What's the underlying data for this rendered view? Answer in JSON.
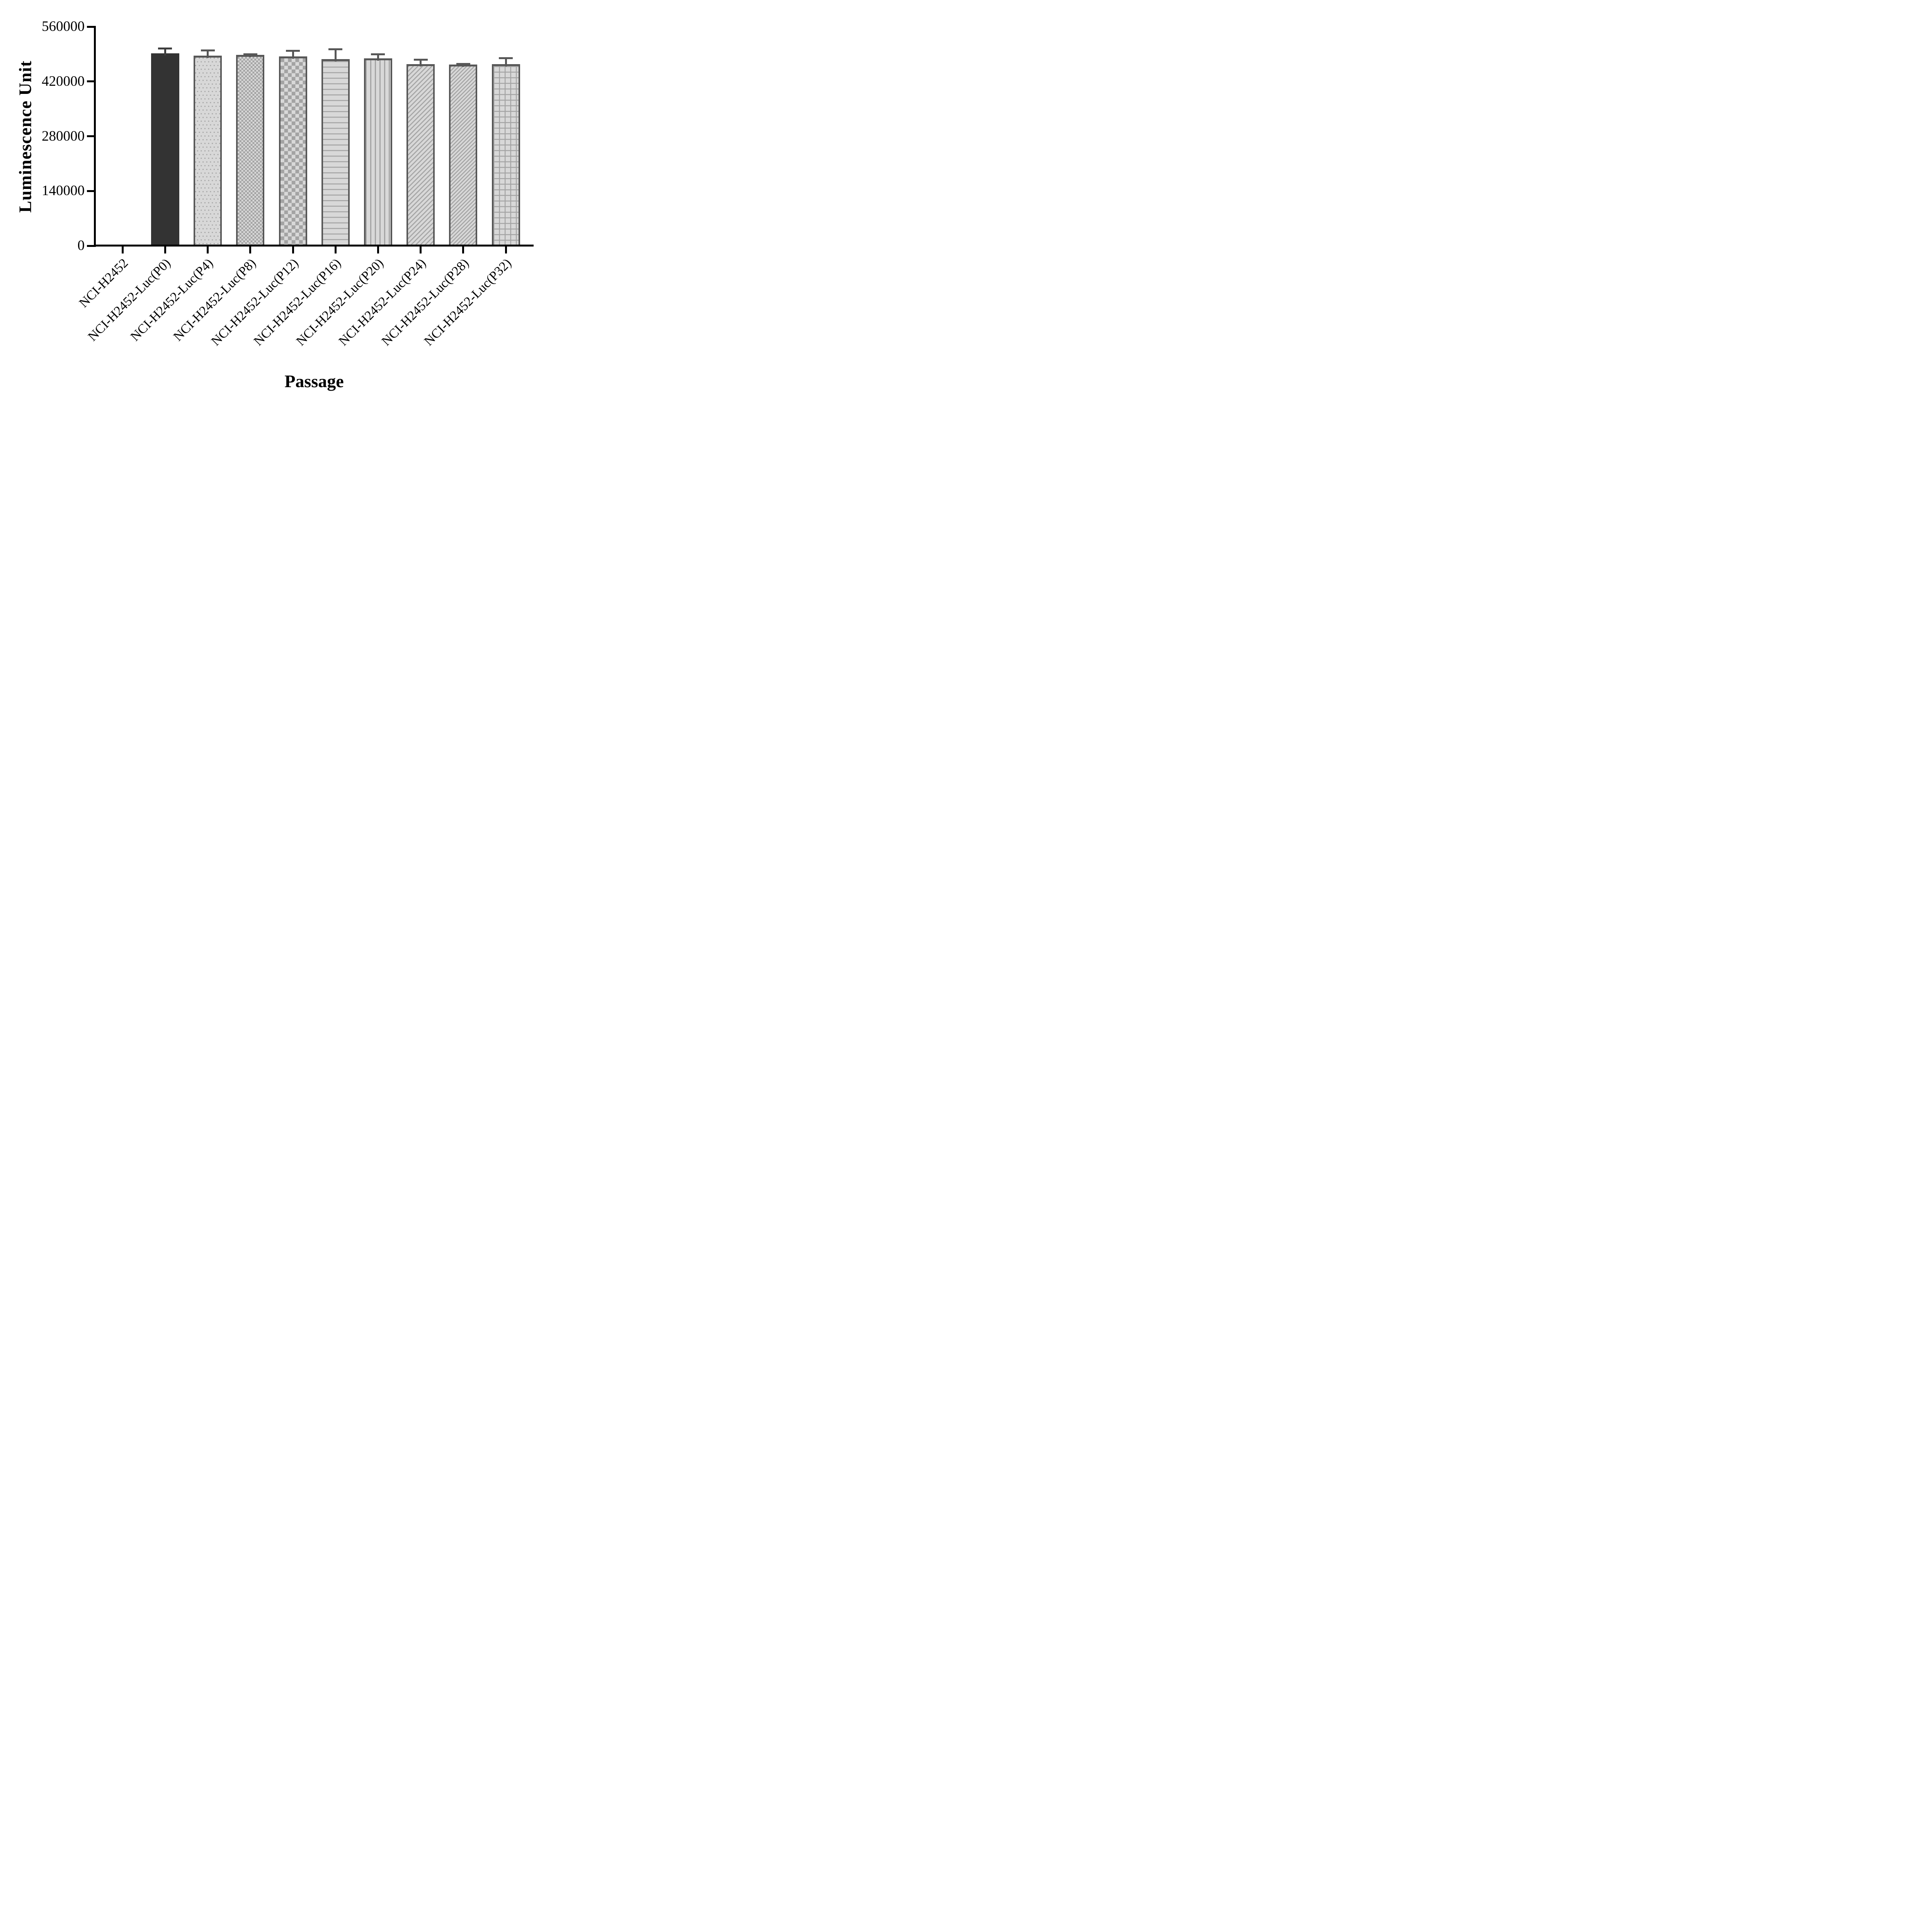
{
  "chart_data": {
    "type": "bar",
    "title": "",
    "xlabel": "Passage",
    "ylabel": "Luminescence Unit",
    "ylim": [
      0,
      560000
    ],
    "yticks": [
      0,
      140000,
      280000,
      420000,
      560000
    ],
    "grid": false,
    "legend_position": "none",
    "categories": [
      "NCI-H2452",
      "NCI-H2452-Luc(P0)",
      "NCI-H2452-Luc(P4)",
      "NCI-H2452-Luc(P8)",
      "NCI-H2452-Luc(P12)",
      "NCI-H2452-Luc(P16)",
      "NCI-H2452-Luc(P20)",
      "NCI-H2452-Luc(P24)",
      "NCI-H2452-Luc(P28)",
      "NCI-H2452-Luc(P32)"
    ],
    "values": [
      0,
      492500,
      486000,
      488500,
      484500,
      477500,
      479000,
      464000,
      463000,
      464500
    ],
    "sd_upper": [
      null,
      14000,
      16000,
      4000,
      16000,
      27500,
      13000,
      14500,
      4500,
      17500
    ],
    "bar_patterns": [
      "none",
      "solid",
      "dots",
      "checker-fine",
      "checker-coarse",
      "hlines",
      "vlines",
      "diagonal",
      "diagonal-dense",
      "grid"
    ],
    "colors": {
      "solid_bar_fill": "#333333",
      "pattern_bar_base": "#d8d8d8",
      "pattern_mark": "#a3a3a3",
      "bar_border": "#575757",
      "error_bar_solid": "#3d3d3d",
      "error_bar_patterned": "#575757",
      "axis": "#000000",
      "background": "#ffffff"
    }
  }
}
